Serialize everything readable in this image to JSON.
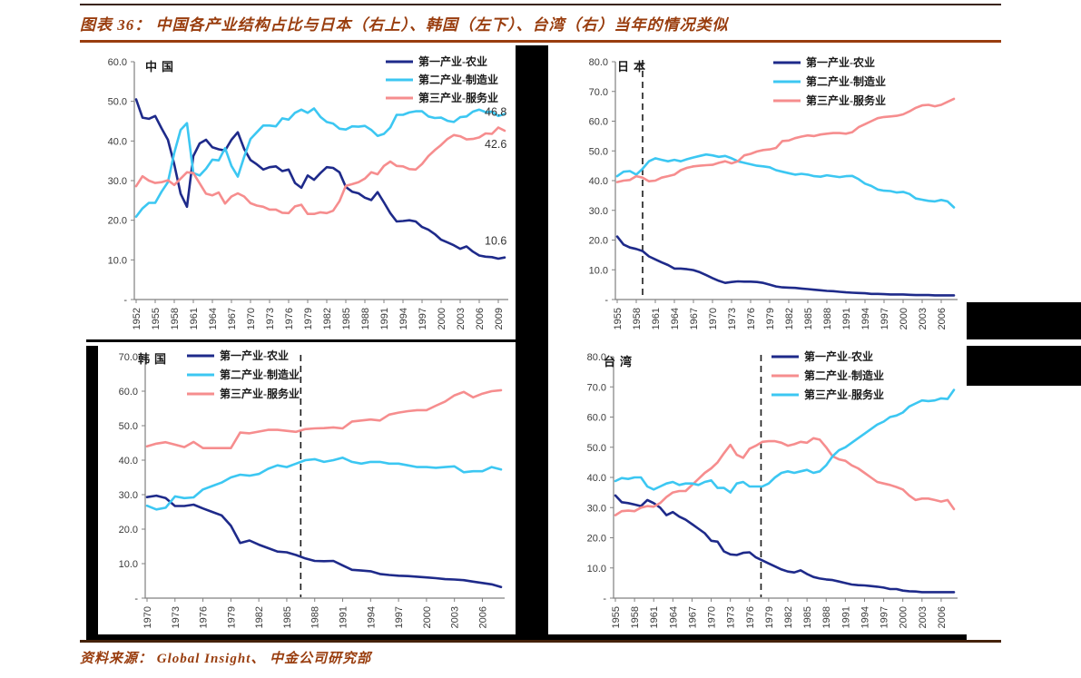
{
  "header": {
    "title": "图表 36：  中国各产业结构占比与日本（右上）、韩国（左下）、台湾（右）当年的情况类似"
  },
  "footer": {
    "source": "资料来源：  Global Insight、  中金公司研究部"
  },
  "colors": {
    "navy": "#1e2a8a",
    "cyan": "#3cc7f2",
    "salmon": "#f68d8e",
    "rust": "#993d0e",
    "axis": "#808080",
    "label": "#3a3a3a",
    "dash": "#1a1a1a"
  },
  "chart_data": [
    {
      "id": "china",
      "type": "line",
      "title": "中国",
      "ylim": [
        0,
        60
      ],
      "ytick_step": 10,
      "zero_label": "-",
      "x_start": 1952,
      "xtick_labels": [
        "1952",
        "1955",
        "1958",
        "1961",
        "1964",
        "1967",
        "1970",
        "1973",
        "1976",
        "1979",
        "1982",
        "1985",
        "1988",
        "1991",
        "1994",
        "1997",
        "2000",
        "2003",
        "2006",
        "2009"
      ],
      "dash_year": null,
      "legend": [
        {
          "label": "第一产业-农业",
          "color_key": "navy"
        },
        {
          "label": "第二产业-制造业",
          "color_key": "cyan"
        },
        {
          "label": "第三产业-服务业",
          "color_key": "salmon"
        }
      ],
      "annotations": [
        {
          "text": "46.8",
          "value": 46.8
        },
        {
          "text": "42.6",
          "value": 42.6
        },
        {
          "text": "10.6",
          "value": 10.6
        }
      ],
      "series": [
        {
          "name": "第一产业-农业",
          "color_key": "navy",
          "values": [
            50.5,
            45.9,
            45.6,
            46.3,
            43.2,
            40.3,
            34.1,
            26.7,
            23.4,
            36.2,
            39.4,
            40.3,
            38.4,
            37.9,
            37.6,
            40.3,
            42.2,
            38.0,
            35.2,
            34.1,
            32.8,
            33.4,
            33.6,
            32.4,
            32.8,
            29.4,
            28.2,
            31.3,
            30.2,
            31.9,
            33.4,
            33.2,
            32.1,
            28.4,
            27.2,
            26.8,
            25.7,
            25.1,
            27.1,
            24.5,
            21.8,
            19.7,
            19.8,
            20.0,
            19.7,
            18.3,
            17.6,
            16.5,
            15.1,
            14.4,
            13.7,
            12.8,
            13.4,
            12.1,
            11.1,
            10.8,
            10.7,
            10.3,
            10.6
          ]
        },
        {
          "name": "第二产业-制造业",
          "color_key": "cyan",
          "values": [
            20.9,
            23.0,
            24.4,
            24.4,
            27.2,
            29.6,
            37.0,
            42.8,
            44.5,
            31.9,
            31.3,
            33.0,
            35.3,
            35.1,
            38.2,
            33.7,
            31.0,
            36.0,
            40.5,
            42.2,
            43.9,
            43.9,
            43.7,
            45.7,
            45.4,
            47.1,
            47.9,
            47.1,
            48.2,
            46.1,
            44.8,
            44.4,
            43.1,
            42.9,
            43.7,
            43.6,
            43.8,
            42.8,
            41.3,
            41.8,
            43.4,
            46.6,
            46.6,
            47.2,
            47.5,
            47.5,
            46.2,
            45.8,
            45.9,
            45.1,
            44.8,
            46.0,
            46.2,
            47.4,
            47.9,
            47.3,
            47.4,
            46.3,
            46.8
          ]
        },
        {
          "name": "第三产业-服务业",
          "color_key": "salmon",
          "values": [
            28.6,
            31.1,
            30.0,
            29.4,
            29.6,
            30.1,
            28.9,
            30.5,
            32.1,
            31.9,
            29.3,
            26.7,
            26.3,
            27.0,
            24.2,
            26.0,
            26.8,
            26.0,
            24.3,
            23.7,
            23.4,
            22.7,
            22.7,
            21.9,
            21.8,
            23.5,
            23.9,
            21.6,
            21.6,
            22.0,
            21.8,
            22.4,
            24.8,
            28.7,
            29.1,
            29.6,
            30.5,
            32.1,
            31.6,
            33.7,
            34.8,
            33.7,
            33.6,
            32.9,
            32.8,
            34.2,
            36.2,
            37.7,
            39.0,
            40.5,
            41.5,
            41.2,
            40.4,
            40.5,
            40.9,
            41.9,
            41.8,
            43.4,
            42.6
          ]
        }
      ]
    },
    {
      "id": "japan",
      "type": "line",
      "title": "日本",
      "ylim": [
        0,
        80
      ],
      "ytick_step": 10,
      "zero_label": "-",
      "x_start": 1955,
      "xtick_labels": [
        "1955",
        "1958",
        "1961",
        "1964",
        "1967",
        "1970",
        "1973",
        "1976",
        "1979",
        "1982",
        "1985",
        "1988",
        "1991",
        "1994",
        "1997",
        "2000",
        "2003",
        "2006"
      ],
      "dash_year": 1959,
      "legend": [
        {
          "label": "第一产业-农业",
          "color_key": "navy"
        },
        {
          "label": "第二产业-制造业",
          "color_key": "cyan"
        },
        {
          "label": "第三产业-服务业",
          "color_key": "salmon"
        }
      ],
      "annotations": [],
      "series": [
        {
          "name": "第一产业-农业",
          "color_key": "navy",
          "values": [
            21.2,
            18.5,
            17.5,
            17.0,
            16.3,
            14.5,
            13.5,
            12.5,
            11.6,
            10.4,
            10.4,
            10.2,
            9.9,
            9.2,
            8.2,
            7.2,
            6.3,
            5.6,
            5.9,
            6.1,
            6.0,
            6.0,
            5.9,
            5.6,
            5.0,
            4.4,
            4.1,
            4.0,
            3.9,
            3.7,
            3.5,
            3.3,
            3.1,
            2.9,
            2.8,
            2.6,
            2.4,
            2.3,
            2.2,
            2.1,
            1.9,
            1.9,
            1.8,
            1.7,
            1.7,
            1.7,
            1.6,
            1.5,
            1.5,
            1.5,
            1.4,
            1.4,
            1.4,
            1.4
          ]
        },
        {
          "name": "第二产业-制造业",
          "color_key": "cyan",
          "values": [
            41.5,
            43.0,
            43.2,
            42.0,
            44.0,
            46.5,
            47.5,
            47.0,
            46.5,
            47.0,
            46.5,
            47.2,
            47.8,
            48.3,
            48.8,
            48.5,
            48.0,
            48.3,
            47.5,
            46.5,
            46.0,
            45.5,
            45.0,
            44.8,
            44.5,
            43.5,
            43.0,
            42.5,
            42.0,
            42.3,
            42.0,
            41.5,
            41.3,
            41.8,
            41.5,
            41.2,
            41.5,
            41.6,
            40.5,
            39.0,
            38.2,
            37.0,
            36.6,
            36.5,
            36.0,
            36.2,
            35.5,
            34.0,
            33.6,
            33.2,
            33.0,
            33.5,
            33.0,
            31.0
          ]
        },
        {
          "name": "第三产业-服务业",
          "color_key": "salmon",
          "values": [
            39.5,
            40.0,
            40.2,
            41.5,
            41.0,
            39.8,
            40.0,
            41.0,
            41.5,
            42.0,
            43.5,
            44.3,
            44.8,
            45.0,
            45.2,
            45.3,
            46.0,
            46.5,
            45.8,
            46.5,
            48.5,
            49.0,
            49.8,
            50.3,
            50.5,
            51.0,
            53.3,
            53.5,
            54.3,
            54.8,
            55.2,
            55.0,
            55.5,
            55.8,
            56.0,
            56.0,
            55.8,
            56.3,
            58.0,
            59.0,
            60.0,
            61.0,
            61.4,
            61.6,
            61.8,
            62.3,
            63.3,
            64.5,
            65.3,
            65.5,
            65.0,
            65.5,
            66.5,
            67.5
          ]
        }
      ]
    },
    {
      "id": "korea",
      "type": "line",
      "title": "韩国",
      "ylim": [
        0,
        70
      ],
      "ytick_step": 10,
      "zero_label": "-",
      "x_start": 1970,
      "xtick_labels": [
        "1970",
        "1973",
        "1976",
        "1979",
        "1982",
        "1985",
        "1988",
        "1991",
        "1994",
        "1997",
        "2000",
        "2003",
        "2006"
      ],
      "dash_year": 1986.5,
      "legend": [
        {
          "label": "第一产业-农业",
          "color_key": "navy"
        },
        {
          "label": "第二产业-制造业",
          "color_key": "cyan"
        },
        {
          "label": "第三产业-服务业",
          "color_key": "salmon"
        }
      ],
      "annotations": [],
      "series": [
        {
          "name": "第一产业-农业",
          "color_key": "navy",
          "values": [
            29.3,
            29.7,
            29.0,
            26.7,
            26.7,
            27.1,
            26.0,
            25.0,
            24.0,
            21.0,
            16.0,
            16.7,
            15.5,
            14.5,
            13.5,
            13.3,
            12.5,
            11.5,
            10.8,
            10.7,
            10.8,
            9.5,
            8.2,
            8.0,
            7.8,
            7.0,
            6.7,
            6.5,
            6.4,
            6.2,
            6.0,
            5.8,
            5.5,
            5.4,
            5.2,
            4.8,
            4.4,
            4.0,
            3.2
          ]
        },
        {
          "name": "第二产业-制造业",
          "color_key": "cyan",
          "values": [
            26.8,
            25.7,
            26.2,
            29.5,
            29.0,
            29.2,
            31.5,
            32.5,
            33.5,
            35.0,
            35.8,
            35.5,
            36.0,
            37.5,
            38.5,
            38.0,
            39.0,
            40.0,
            40.3,
            39.5,
            40.0,
            40.7,
            39.5,
            39.0,
            39.5,
            39.5,
            39.0,
            39.0,
            38.5,
            38.0,
            38.0,
            37.8,
            38.0,
            38.2,
            36.5,
            36.8,
            36.8,
            38.0,
            37.3
          ]
        },
        {
          "name": "第三产业-服务业",
          "color_key": "salmon",
          "values": [
            44.0,
            44.8,
            45.2,
            44.5,
            43.8,
            45.3,
            43.5,
            43.5,
            43.5,
            43.5,
            48.0,
            47.8,
            48.3,
            48.8,
            48.8,
            48.5,
            48.2,
            49.0,
            49.2,
            49.3,
            49.5,
            49.2,
            51.2,
            51.5,
            51.8,
            51.5,
            53.2,
            53.8,
            54.2,
            54.5,
            54.5,
            55.8,
            57.0,
            58.8,
            59.8,
            58.2,
            59.3,
            60.0,
            60.3
          ]
        }
      ]
    },
    {
      "id": "taiwan",
      "type": "line",
      "title": "台湾",
      "ylim": [
        0,
        80
      ],
      "ytick_step": 10,
      "zero_label": "-",
      "x_start": 1955,
      "xtick_labels": [
        "1955",
        "1958",
        "1961",
        "1964",
        "1967",
        "1970",
        "1973",
        "1976",
        "1979",
        "1982",
        "1985",
        "1988",
        "1991",
        "1994",
        "1997",
        "2000",
        "2003",
        "2006"
      ],
      "dash_year": 1977.8,
      "legend": [
        {
          "label": "第一产业-农业",
          "color_key": "navy"
        },
        {
          "label": "第二产业-制造业",
          "color_key": "salmon"
        },
        {
          "label": "第三产业-服务业",
          "color_key": "cyan"
        }
      ],
      "annotations": [],
      "series": [
        {
          "name": "第一产业-农业",
          "color_key": "navy",
          "values": [
            34.0,
            31.8,
            31.5,
            31.0,
            30.5,
            32.5,
            31.5,
            30.0,
            27.5,
            28.5,
            27.0,
            26.0,
            24.5,
            23.0,
            21.5,
            19.0,
            18.7,
            15.5,
            14.5,
            14.3,
            15.0,
            15.2,
            13.5,
            12.5,
            11.5,
            10.5,
            9.5,
            8.8,
            8.5,
            9.2,
            8.0,
            7.0,
            6.5,
            6.2,
            6.0,
            5.5,
            5.0,
            4.5,
            4.3,
            4.2,
            4.0,
            3.8,
            3.5,
            3.0,
            3.0,
            2.5,
            2.3,
            2.2,
            2.0,
            2.0,
            2.0,
            2.0,
            2.0,
            2.0
          ]
        },
        {
          "name": "第二产业-制造业",
          "color_key": "salmon",
          "values": [
            27.5,
            28.8,
            29.0,
            28.8,
            30.0,
            30.5,
            30.3,
            31.5,
            33.5,
            35.0,
            35.5,
            35.5,
            37.5,
            39.5,
            41.5,
            43.0,
            45.0,
            48.0,
            50.8,
            47.5,
            46.5,
            49.5,
            50.5,
            51.8,
            52.0,
            52.0,
            51.5,
            50.5,
            51.0,
            51.8,
            51.5,
            53.0,
            52.5,
            50.0,
            47.0,
            46.0,
            45.5,
            44.0,
            43.0,
            41.5,
            40.0,
            38.5,
            38.0,
            37.5,
            36.8,
            36.0,
            34.0,
            32.5,
            33.0,
            33.0,
            32.5,
            32.0,
            32.5,
            29.5
          ]
        },
        {
          "name": "第三产业-服务业",
          "color_key": "cyan",
          "values": [
            38.8,
            39.8,
            39.5,
            40.0,
            40.0,
            37.0,
            36.0,
            37.0,
            38.0,
            38.5,
            37.5,
            38.0,
            38.0,
            37.5,
            38.5,
            39.0,
            36.5,
            36.5,
            35.0,
            38.0,
            38.5,
            37.0,
            37.0,
            37.0,
            38.0,
            40.0,
            41.5,
            42.0,
            41.5,
            42.0,
            42.5,
            41.5,
            42.0,
            44.0,
            47.0,
            49.0,
            50.0,
            51.5,
            53.0,
            54.5,
            56.0,
            57.5,
            58.5,
            60.0,
            60.5,
            61.5,
            63.5,
            64.5,
            65.5,
            65.3,
            65.5,
            66.2,
            66.0,
            69.0
          ]
        }
      ]
    }
  ]
}
